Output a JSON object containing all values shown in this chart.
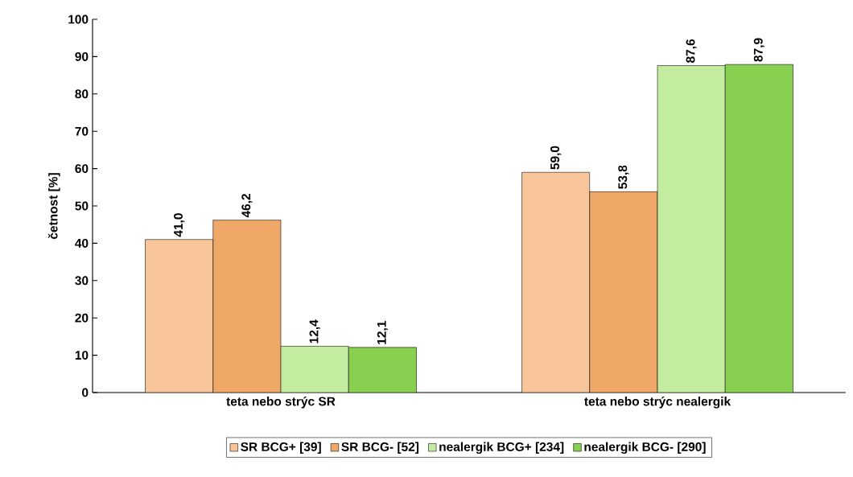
{
  "chart_data": {
    "type": "bar",
    "ylabel": "četnost [%]",
    "categories": [
      "teta nebo strýc SR",
      "teta nebo strýc nealergik"
    ],
    "series": [
      {
        "name": "SR BCG+ [39]",
        "color": "#f8c49a",
        "values": [
          41.0,
          59.0
        ],
        "value_labels": [
          "41,0",
          "59,0"
        ]
      },
      {
        "name": "SR BCG- [52]",
        "color": "#f0a868",
        "values": [
          46.2,
          53.8
        ],
        "value_labels": [
          "46,2",
          "53,8"
        ]
      },
      {
        "name": "nealergik BCG+ [234]",
        "color": "#c4eca0",
        "values": [
          12.4,
          87.6
        ],
        "value_labels": [
          "12,4",
          "87,6"
        ]
      },
      {
        "name": "nealergik BCG- [290]",
        "color": "#88d050",
        "values": [
          12.1,
          87.9
        ],
        "value_labels": [
          "12,1",
          "87,9"
        ]
      }
    ],
    "ylim": [
      0,
      100
    ],
    "yticks": [
      0,
      10,
      20,
      30,
      40,
      50,
      60,
      70,
      80,
      90,
      100
    ],
    "grid": false,
    "legend": "bottom"
  }
}
